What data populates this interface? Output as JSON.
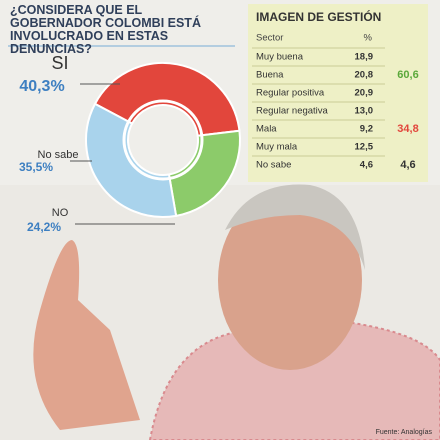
{
  "chart_data": {
    "type": "pie",
    "title": "¿CONSIDERA QUE EL GOBERNADOR COLOMBI ESTÁ INVOLUCRADO EN ESTAS DENUNCIAS?",
    "categories": [
      "SI",
      "NO",
      "No sabe"
    ],
    "values": [
      40.3,
      24.2,
      35.5
    ],
    "value_labels": [
      "40,3%",
      "24,2%",
      "35,5%"
    ],
    "colors": [
      "#e2463c",
      "#8ccb6a",
      "#a9d3ec"
    ],
    "donut": true
  },
  "table": {
    "title": "IMAGEN DE GESTIÓN",
    "header": [
      "Sector",
      "%"
    ],
    "rows": [
      [
        "Muy buena",
        "18,9"
      ],
      [
        "Buena",
        "20,8",
        "60,6"
      ],
      [
        "Regular positiva",
        "20,9"
      ],
      [
        "Regular negativa",
        "13,0"
      ],
      [
        "Mala",
        "9,2",
        "34,8"
      ],
      [
        "Muy mala",
        "12,5"
      ],
      [
        "No sabe",
        "4,6",
        "4,6"
      ]
    ]
  },
  "source": "Fuente: Analogías"
}
